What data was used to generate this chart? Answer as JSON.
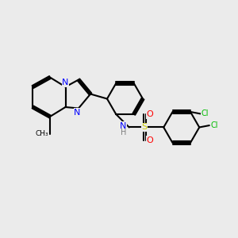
{
  "bg_color": "#ebebeb",
  "bond_color": "#000000",
  "bond_width": 1.5,
  "atom_colors": {
    "N": "#0000ff",
    "S": "#cccc00",
    "O": "#ff0000",
    "Cl": "#00bb00",
    "C": "#000000",
    "H": "#808080"
  },
  "font_size": 7.5
}
